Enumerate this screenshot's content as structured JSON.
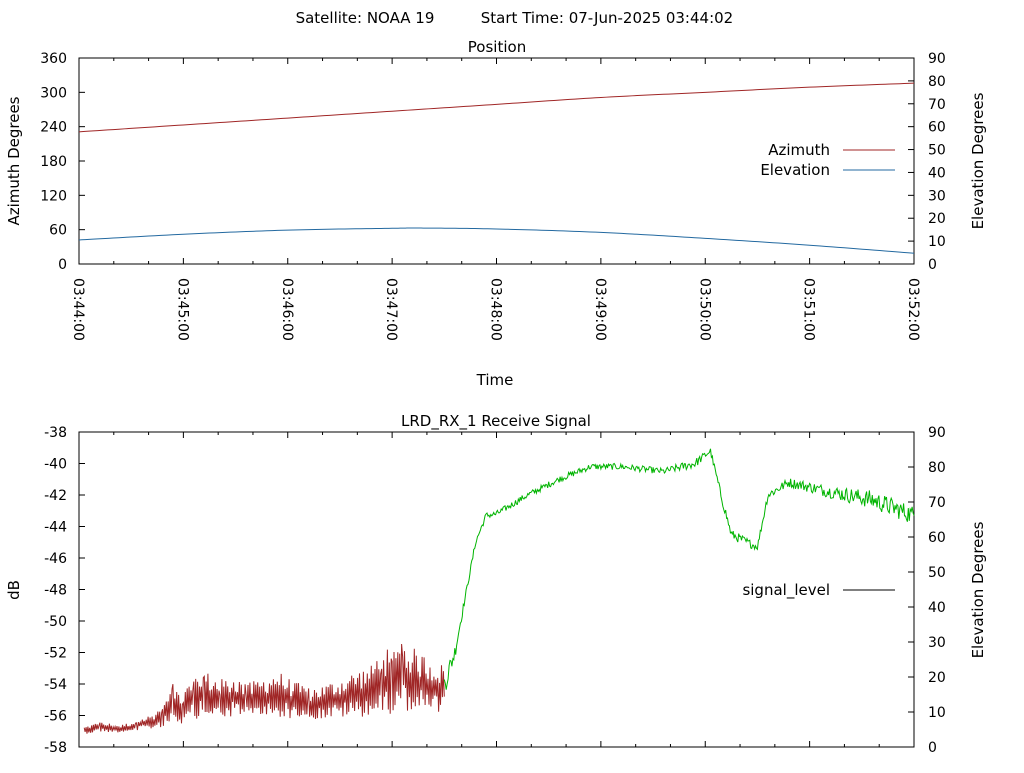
{
  "header": {
    "satellite": "Satellite: NOAA 19",
    "start_time": "Start Time: 07-Jun-2025 03:44:02"
  },
  "colors": {
    "azimuth": "#a02626",
    "elevation": "#2369a0",
    "signal_low": "#a02626",
    "signal_high": "#00b400",
    "legend_signal": "#000000"
  },
  "chart_data": [
    {
      "type": "line",
      "title": "Position",
      "xlabel": "Time",
      "ylabel": "Azimuth Degrees",
      "y2label": "Elevation Degrees",
      "x_tick_labels": [
        "03:44:00",
        "03:45:00",
        "03:46:00",
        "03:47:00",
        "03:48:00",
        "03:49:00",
        "03:50:00",
        "03:51:00",
        "03:52:00"
      ],
      "xlim_minutes": [
        0,
        8
      ],
      "ylim": [
        0,
        360
      ],
      "y_ticks": [
        0,
        60,
        120,
        180,
        240,
        300,
        360
      ],
      "y2lim": [
        0,
        90
      ],
      "y2_ticks": [
        0,
        10,
        20,
        30,
        40,
        50,
        60,
        70,
        80,
        90
      ],
      "legend_position": "right",
      "series": [
        {
          "name": "Azimuth",
          "axis": "y",
          "color": "#a02626",
          "x": [
            0,
            1,
            2,
            3,
            4,
            5,
            6,
            7,
            8
          ],
          "values": [
            231,
            243,
            255,
            267,
            279,
            291,
            300,
            309,
            316
          ]
        },
        {
          "name": "Elevation",
          "axis": "y2",
          "color": "#2369a0",
          "x": [
            0,
            1,
            2,
            3,
            3.3,
            4,
            5,
            6,
            7,
            8
          ],
          "values": [
            10.5,
            13,
            14.8,
            15.6,
            15.7,
            15.3,
            13.8,
            11.2,
            8.2,
            4.7
          ]
        }
      ]
    },
    {
      "type": "line",
      "title": "LRD_RX_1 Receive Signal",
      "ylabel": "dB",
      "y2label": "Elevation Degrees",
      "xlim_minutes": [
        0,
        8
      ],
      "ylim": [
        -58,
        -38
      ],
      "y_ticks": [
        -58,
        -56,
        -54,
        -52,
        -50,
        -48,
        -46,
        -44,
        -42,
        -40,
        -38
      ],
      "y2lim": [
        0,
        90
      ],
      "y2_ticks": [
        0,
        10,
        20,
        30,
        40,
        50,
        60,
        70,
        80,
        90
      ],
      "legend_position": "right",
      "series": [
        {
          "name": "signal_level",
          "segments": [
            {
              "color": "#a02626",
              "x": [
                0.05,
                0.2,
                0.4,
                0.55,
                0.7,
                0.8,
                0.9,
                1.0,
                1.1,
                1.2,
                1.35,
                1.5,
                1.6,
                1.75,
                1.9,
                2.05,
                2.2,
                2.35,
                2.5,
                2.65,
                2.8,
                2.9,
                3.0,
                3.1,
                3.25,
                3.4,
                3.5
              ],
              "values": [
                -57.0,
                -56.8,
                -56.9,
                -56.7,
                -56.5,
                -56.2,
                -55.5,
                -55.8,
                -55.2,
                -55.0,
                -55.3,
                -55.1,
                -55.4,
                -55.2,
                -55.0,
                -55.3,
                -55.5,
                -55.4,
                -55.2,
                -55.0,
                -54.8,
                -54.2,
                -54.5,
                -54.0,
                -54.3,
                -54.6,
                -54.8
              ],
              "amp": [
                0.3,
                0.4,
                0.3,
                0.4,
                0.6,
                0.9,
                1.5,
                1.3,
                1.7,
                1.9,
                1.6,
                1.7,
                1.4,
                1.6,
                1.9,
                1.5,
                1.3,
                1.4,
                1.6,
                1.9,
                2.0,
                2.8,
                2.4,
                2.8,
                2.4,
                2.2,
                2.0
              ]
            },
            {
              "color": "#00b400",
              "x": [
                3.5,
                3.6,
                3.7,
                3.8,
                3.9,
                4.0,
                4.3,
                4.6,
                4.9,
                5.2,
                5.6,
                5.9,
                6.05,
                6.15,
                6.25,
                6.4,
                6.5,
                6.6,
                6.8,
                7.2,
                7.6,
                8.0
              ],
              "values": [
                -54.0,
                -52.0,
                -48.5,
                -45.0,
                -43.3,
                -43.2,
                -42.0,
                -41.0,
                -40.2,
                -40.2,
                -40.5,
                -40.0,
                -39.2,
                -42.0,
                -44.5,
                -45.0,
                -45.3,
                -42.0,
                -41.2,
                -41.8,
                -42.3,
                -43.3
              ],
              "amp": [
                0.8,
                0.5,
                0.2,
                0.2,
                0.2,
                0.2,
                0.2,
                0.2,
                0.2,
                0.2,
                0.2,
                0.3,
                0.2,
                0.3,
                0.3,
                0.3,
                0.2,
                0.3,
                0.3,
                0.4,
                0.6,
                0.6
              ]
            }
          ]
        }
      ]
    }
  ]
}
